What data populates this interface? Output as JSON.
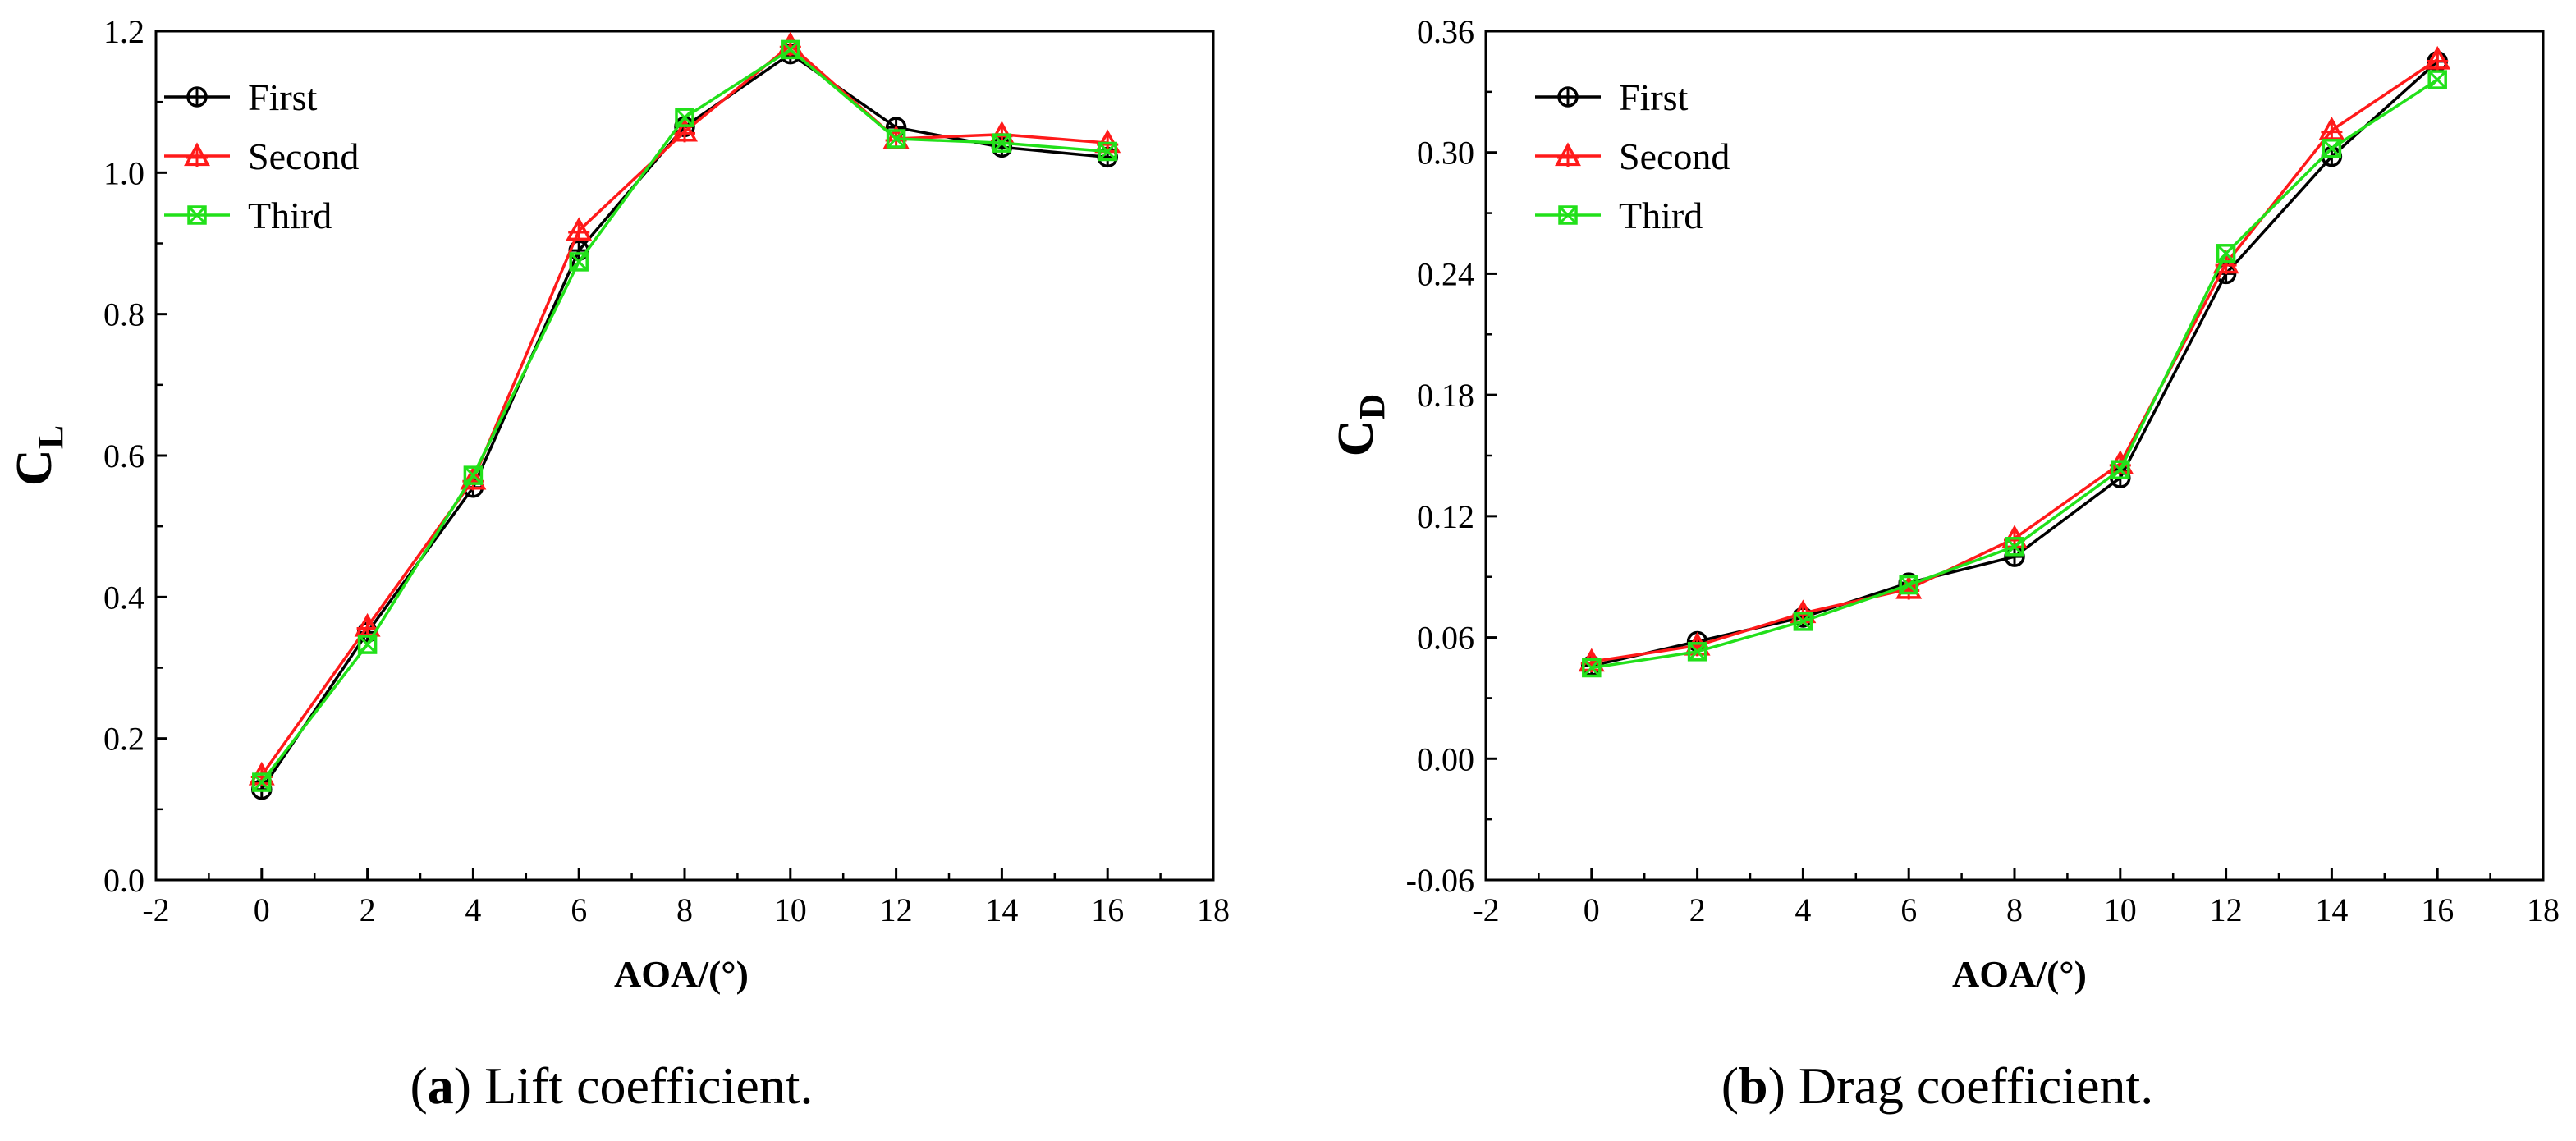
{
  "chart_data": [
    {
      "type": "line",
      "caption_letter": "a",
      "caption_text": "Lift coefficient.",
      "xlabel": "AOA/(°)",
      "ylabel_main": "C",
      "ylabel_sub": "L",
      "xlim": [
        -2,
        18
      ],
      "ylim": [
        0,
        1.2
      ],
      "xticks": [
        -2,
        0,
        2,
        4,
        6,
        8,
        10,
        12,
        14,
        16,
        18
      ],
      "yticks": [
        "0.0",
        "0.2",
        "0.4",
        "0.6",
        "0.8",
        "1.0",
        "1.2"
      ],
      "x": [
        0,
        2,
        4,
        6,
        8,
        10,
        12,
        14,
        16
      ],
      "legend_position": "top-left",
      "series": [
        {
          "name": "First",
          "color": "#000000",
          "marker": "circle-plus",
          "values": [
            0.128,
            0.35,
            0.555,
            0.89,
            1.065,
            1.168,
            1.064,
            1.036,
            1.022
          ]
        },
        {
          "name": "Second",
          "color": "#ff1a1a",
          "marker": "triangle-plus",
          "values": [
            0.148,
            0.358,
            0.566,
            0.918,
            1.058,
            1.18,
            1.048,
            1.054,
            1.042
          ]
        },
        {
          "name": "Third",
          "color": "#22e01a",
          "marker": "square-x",
          "values": [
            0.138,
            0.333,
            0.572,
            0.874,
            1.078,
            1.174,
            1.048,
            1.042,
            1.03
          ]
        }
      ]
    },
    {
      "type": "line",
      "caption_letter": "b",
      "caption_text": "Drag coefficient.",
      "xlabel": "AOA/(°)",
      "ylabel_main": "C",
      "ylabel_sub": "D",
      "xlim": [
        -2,
        18
      ],
      "ylim": [
        -0.06,
        0.36
      ],
      "xticks": [
        -2,
        0,
        2,
        4,
        6,
        8,
        10,
        12,
        14,
        16,
        18
      ],
      "yticks": [
        "-0.06",
        "0.00",
        "0.06",
        "0.12",
        "0.18",
        "0.24",
        "0.30",
        "0.36"
      ],
      "x": [
        0,
        2,
        4,
        6,
        8,
        10,
        12,
        14,
        16
      ],
      "legend_position": "top-left",
      "series": [
        {
          "name": "First",
          "color": "#000000",
          "marker": "circle-plus",
          "values": [
            0.046,
            0.058,
            0.07,
            0.087,
            0.1,
            0.139,
            0.24,
            0.298,
            0.345
          ]
        },
        {
          "name": "Second",
          "color": "#ff1a1a",
          "marker": "triangle-plus",
          "values": [
            0.048,
            0.056,
            0.072,
            0.084,
            0.109,
            0.146,
            0.245,
            0.311,
            0.346
          ]
        },
        {
          "name": "Third",
          "color": "#22e01a",
          "marker": "square-x",
          "values": [
            0.045,
            0.053,
            0.068,
            0.086,
            0.105,
            0.143,
            0.25,
            0.302,
            0.336
          ]
        }
      ]
    }
  ]
}
